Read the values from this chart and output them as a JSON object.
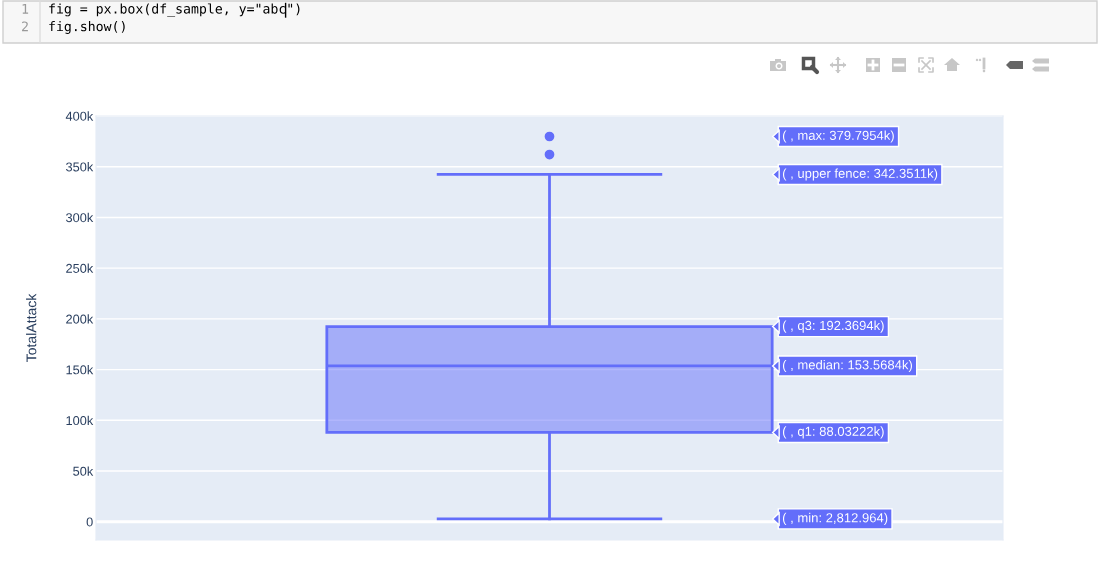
{
  "chart_data": {
    "type": "box",
    "categories": [
      null
    ],
    "ylabel": "TotalAttack",
    "series": [
      {
        "color": "#636efa",
        "boxes": [
          {
            "low": 2812.964,
            "q1": 88032.22,
            "median": 153568.4,
            "q3": 192369.4,
            "high": 342351.1,
            "outliers": [
              379795.4,
              362000
            ]
          }
        ]
      }
    ],
    "ylim": [
      -18000,
      400000
    ],
    "yticks": [
      0,
      {
        "value": 50000,
        "label": "50k"
      },
      {
        "value": 100000,
        "label": "100k"
      },
      {
        "value": 150000,
        "label": "150k"
      },
      {
        "value": 200000,
        "label": "200k"
      },
      {
        "value": 250000,
        "label": "250k"
      },
      {
        "value": 300000,
        "label": "300k"
      },
      {
        "value": 350000,
        "label": "350k"
      },
      {
        "value": 400000,
        "label": "400k"
      }
    ],
    "grid": "y",
    "tick_labels": "y",
    "annotations": [
      "1",
      "fig = px.box(df_sample, y=\"abc\")",
      "2",
      "fig.show()",
      "( , max: 379.7954k)",
      "( , upper fence: 342.3511k)",
      "( , q3: 192.3694k)",
      "( , median: 153.5684k)",
      "( , q1: 88.03222k)",
      "( , min: 2,812.964)"
    ]
  }
}
